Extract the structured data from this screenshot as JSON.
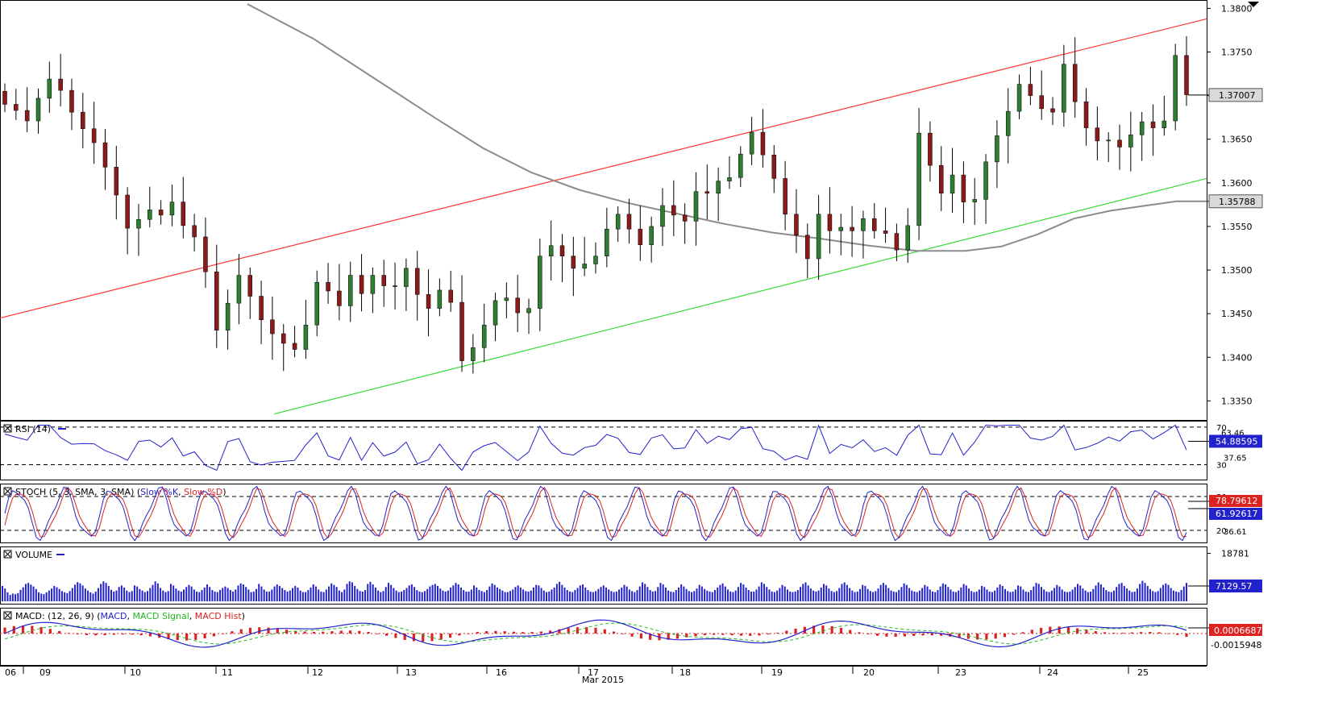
{
  "chart_data": {
    "type": "candlestick",
    "title": "",
    "x_axis": {
      "ticks": [
        "06",
        "09",
        "10",
        "11",
        "12",
        "13",
        "16",
        "17",
        "18",
        "19",
        "20",
        "23",
        "24",
        "25"
      ],
      "month_label": "Mar 2015"
    },
    "price_panel": {
      "y_ticks": [
        "1.3800",
        "1.3750",
        "1.3700",
        "1.3650",
        "1.3600",
        "1.3550",
        "1.3500",
        "1.3450",
        "1.3400",
        "1.3350"
      ],
      "ylim": [
        1.333,
        1.3805
      ],
      "last_price_label": "1.37007",
      "last_price": 1.37007,
      "sma_label": "1.35788",
      "sma_value": 1.35788,
      "resistance_line": {
        "color": "#ff3333",
        "from": {
          "x": 0,
          "y": 1.3445
        },
        "to": {
          "x": 1,
          "y": 1.3788
        }
      },
      "support_line": {
        "color": "#33dd33",
        "from": {
          "x": 0.2273,
          "y": 1.3335
        },
        "to": {
          "x": 1,
          "y": 1.3605
        }
      },
      "sma_color": "#8c8c8c",
      "candle_up_color": "#2e7d32",
      "candle_down_color": "#8b1a1a",
      "closes": [
        1.369,
        1.3683,
        1.3671,
        1.3697,
        1.3719,
        1.3706,
        1.3681,
        1.3662,
        1.3646,
        1.3618,
        1.3586,
        1.3548,
        1.3558,
        1.3569,
        1.3563,
        1.3578,
        1.3551,
        1.3538,
        1.3498,
        1.3431,
        1.3462,
        1.3494,
        1.347,
        1.3443,
        1.3427,
        1.3416,
        1.3409,
        1.3437,
        1.3486,
        1.3476,
        1.3459,
        1.3494,
        1.3473,
        1.3494,
        1.3482,
        1.3481,
        1.3502,
        1.3472,
        1.3456,
        1.3477,
        1.3463,
        1.3396,
        1.3411,
        1.3437,
        1.3465,
        1.3468,
        1.3451,
        1.3456,
        1.3516,
        1.3528,
        1.3516,
        1.3502,
        1.3507,
        1.3516,
        1.3547,
        1.3564,
        1.3547,
        1.3529,
        1.355,
        1.3574,
        1.3563,
        1.3556,
        1.359,
        1.3588,
        1.3602,
        1.3606,
        1.3633,
        1.3658,
        1.3632,
        1.3605,
        1.3564,
        1.354,
        1.3513,
        1.3564,
        1.3545,
        1.3549,
        1.3545,
        1.3559,
        1.3545,
        1.3542,
        1.3523,
        1.3551,
        1.3657,
        1.362,
        1.3588,
        1.3609,
        1.3578,
        1.3581,
        1.3624,
        1.3654,
        1.3682,
        1.3713,
        1.37,
        1.3685,
        1.3681,
        1.3736,
        1.3693,
        1.3663,
        1.3648,
        1.3649,
        1.3641,
        1.3655,
        1.367,
        1.3663,
        1.3671,
        1.3746,
        1.3701
      ]
    },
    "rsi_panel": {
      "label": "RSI (14)",
      "y_ticks": [
        "70",
        "30"
      ],
      "levels": [
        70,
        30
      ],
      "ylim": [
        15,
        75
      ],
      "current_label": "54.88595",
      "current": 54.88595,
      "marker_labels": [
        "63.46",
        "37.65"
      ],
      "color": "#2222cc"
    },
    "stoch_panel": {
      "label": "STOCH (5, 3, SMA, 3, SMA)",
      "legend": [
        {
          "name": "Slow %K",
          "color": "#2222cc"
        },
        {
          "name": "Slow %D",
          "color": "#dd2222"
        }
      ],
      "y_ticks": [
        "80",
        "20"
      ],
      "levels": [
        80,
        20
      ],
      "ylim": [
        0,
        100
      ],
      "k_label": "78.79612",
      "d_label": "61.92617",
      "marker_label": "36.61"
    },
    "volume_panel": {
      "label": "VOLUME",
      "y_ticks": [
        "18781"
      ],
      "ymax": 20500,
      "current_label": "7129.57",
      "color": "#2222cc",
      "values": [
        6000,
        5000,
        3500,
        2500,
        3000,
        2800,
        3200,
        4500,
        5500,
        6800,
        7200,
        6500,
        5800,
        4800,
        3500,
        3000,
        2800,
        3500,
        4200,
        5000,
        6000,
        5500,
        4800,
        4000,
        3500,
        3200,
        4000,
        5200,
        6500,
        7500,
        7000,
        6200,
        5000,
        4200,
        3500,
        3000,
        3800,
        5200,
        6800,
        7800,
        7200,
        6000,
        4500,
        3800,
        4200,
        5600,
        6200,
        5400,
        4200,
        3600,
        4000,
        6200,
        5800,
        4800,
        4200,
        3600,
        4000,
        5200,
        6400,
        7800,
        7000,
        5200,
        4200,
        3600,
        4000,
        6800,
        6200,
        5000,
        4200,
        3800,
        4600,
        5600,
        6400,
        5800,
        4600,
        3800,
        3600,
        4400,
        5400,
        6600,
        5600,
        4400,
        3800,
        3600,
        4400,
        5200,
        5800,
        5200,
        4400,
        3800,
        4600,
        6200,
        7000,
        6600,
        5600,
        4600,
        3600,
        3800,
        4800,
        6800,
        5800,
        4600,
        3800,
        3800,
        4600,
        5800,
        6600,
        6000,
        5200,
        4400,
        3800,
        4200,
        5200,
        6000,
        5400,
        4200,
        3600,
        3600,
        4400,
        5400,
        6600,
        5800,
        4600,
        3800,
        3600,
        4600,
        5800,
        7000,
        6400,
        5600,
        4200,
        3600,
        4600,
        6800,
        7800,
        7400,
        6000,
        4800,
        4000,
        3800,
        4400,
        6800,
        7600,
        6600,
        5400,
        4200,
        3600,
        4000,
        5600,
        7200,
        6400,
        5200,
        4200,
        3600,
        3800,
        4400,
        5200,
        6200,
        6600,
        5600,
        4400,
        3800,
        3600,
        4000,
        4800,
        5800,
        6400,
        6800,
        6000,
        5000,
        4200,
        3800,
        4200,
        5400,
        6200,
        7200,
        6600,
        5400,
        4400,
        3800,
        3800,
        4600,
        6200,
        5400,
        4400,
        4000,
        3600,
        4400,
        5800,
        7000,
        6400,
        5400,
        4800,
        4200,
        3600,
        3600,
        4000,
        4600,
        5600,
        6200,
        5400,
        4600,
        4000,
        3800,
        4200,
        5400,
        6400,
        6200,
        5200,
        4200,
        3600,
        3800,
        4600,
        5400,
        6800,
        7600,
        6400,
        5400,
        4400,
        3800,
        3600,
        4400,
        5200,
        6200,
        6600,
        5400,
        4400,
        3800,
        3600,
        4000,
        4800,
        5600,
        6200,
        5400,
        4600,
        4000,
        3600,
        3800,
        4600,
        5400,
        6400,
        5800,
        4600,
        4000,
        3600,
        4400,
        5800,
        7400,
        6800,
        5600,
        4400,
        3800,
        4000,
        5600,
        7200,
        6600,
        5400,
        4200,
        3800,
        3600,
        4400,
        5400,
        6600,
        5800,
        4800,
        4000,
        3600,
        4000,
        5000,
        6400,
        5800,
        4800,
        4200,
        3800,
        3600,
        4400,
        5400,
        6400,
        7000,
        5800,
        4600,
        3800,
        3600,
        4200,
        5600,
        7200,
        6600,
        5400,
        4400,
        3800,
        3800,
        4600,
        5800,
        7400,
        6800,
        5600,
        4600,
        3800,
        3600,
        4200,
        5200,
        6400,
        5800,
        4600,
        3800,
        3600,
        3800,
        4400,
        5600,
        6800,
        7400,
        6200,
        5000,
        4200,
        3800,
        4200,
        5400,
        6800,
        6200,
        5000,
        4000,
        3600,
        4000,
        5200,
        6800,
        7400,
        6400,
        5200,
        4200,
        3600,
        3800,
        4800,
        6400,
        6000,
        4800,
        4000,
        3600,
        4000,
        5000,
        6400,
        7200,
        6400,
        5200,
        4200,
        3800,
        3600,
        4400,
        5600,
        7000,
        6400,
        5200,
        4200,
        3800,
        3600,
        4200,
        5200,
        6400,
        5800,
        4600,
        3800,
        3600,
        4400,
        5800,
        7000,
        6600,
        5600,
        4600,
        3800,
        3600,
        4200,
        5400,
        6800,
        6200,
        5000,
        4000,
        3600,
        3800,
        4600,
        6000,
        5600,
        4600,
        3800,
        3600,
        4200,
        5400,
        6600,
        6000,
        4800,
        4000,
        3600,
        3800,
        4600,
        6200,
        5800,
        4600,
        3800,
        3600,
        4400,
        5800,
        7200,
        6800,
        5600,
        4600,
        3800,
        3600,
        4200,
        5200,
        6400,
        5800,
        4600,
        3800,
        3600,
        3800,
        4600,
        5600,
        6800,
        6200,
        5000,
        4200,
        3600,
        3800,
        4800,
        6200,
        7400,
        6600,
        5400,
        4400,
        3800,
        3600,
        4200,
        5600,
        6800,
        7200,
        6000,
        5000,
        4200,
        3600,
        3800,
        5000,
        6800,
        8000,
        7200,
        6000,
        4800,
        4000,
        3600,
        4000,
        5200,
        6400,
        7000,
        6400,
        5200,
        4200,
        3800,
        3600,
        4400,
        5800,
        7200
      ]
    },
    "macd_panel": {
      "label": "MACD: (12, 26, 9)",
      "legend": [
        {
          "name": "MACD",
          "color": "#2222cc"
        },
        {
          "name": "MACD Signal",
          "color": "#22bb22"
        },
        {
          "name": "MACD Hist",
          "color": "#dd2222"
        }
      ],
      "y_ticks": [
        "-0.0015948"
      ],
      "current_label": "0.0006687"
    }
  }
}
